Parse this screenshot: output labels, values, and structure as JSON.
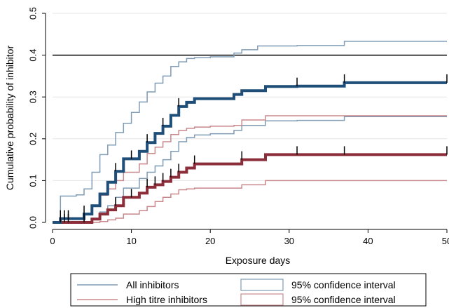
{
  "chart_data": {
    "type": "line",
    "xlabel": "Exposure days",
    "ylabel": "Cumulative probability of inhibitor",
    "xlim": [
      0,
      50
    ],
    "ylim": [
      0,
      0.5
    ],
    "x_ticks": [
      "0",
      "10",
      "20",
      "30",
      "40",
      "50"
    ],
    "x_tick_values": [
      0,
      10,
      20,
      30,
      40,
      50
    ],
    "y_ticks": [
      "0.0",
      "0.1",
      "0.2",
      "0.3",
      "0.4",
      "0.5"
    ],
    "y_tick_values": [
      0,
      0.1,
      0.2,
      0.3,
      0.4,
      0.5
    ],
    "reference_line": 0.4,
    "grid": "horizontal",
    "legend_position": "bottom",
    "legend": [
      {
        "label": "All inhibitors",
        "kind": "line",
        "color": "#7f9cb4"
      },
      {
        "label": "95% confidence interval",
        "kind": "box",
        "color": "#7f9cb4"
      },
      {
        "label": "High titre inhibitors",
        "kind": "line",
        "color": "#c8888c"
      },
      {
        "label": "95% confidence interval",
        "kind": "box",
        "color": "#c8888c"
      }
    ],
    "series": [
      {
        "key": "all",
        "color": "#1f4e79",
        "width": 4,
        "x": [
          0,
          1,
          4,
          5,
          6,
          7,
          8,
          9,
          11,
          12,
          13,
          14,
          15,
          16,
          17,
          18,
          20,
          23,
          24,
          27,
          31,
          37,
          50
        ],
        "y": [
          0,
          0.009,
          0.02,
          0.04,
          0.068,
          0.096,
          0.122,
          0.152,
          0.17,
          0.191,
          0.213,
          0.23,
          0.256,
          0.277,
          0.287,
          0.296,
          0.296,
          0.306,
          0.315,
          0.325,
          0.326,
          0.334,
          0.334
        ]
      },
      {
        "key": "all_upper",
        "color": "#7f9cb4",
        "width": 1.5,
        "x": [
          0,
          1,
          3,
          4,
          5,
          6,
          7,
          8,
          9,
          10,
          11,
          12,
          13,
          14,
          15,
          16,
          17,
          18,
          20,
          23,
          24,
          26,
          31,
          37,
          50
        ],
        "y": [
          0,
          0.063,
          0.066,
          0.08,
          0.12,
          0.162,
          0.185,
          0.215,
          0.237,
          0.263,
          0.288,
          0.312,
          0.333,
          0.35,
          0.373,
          0.384,
          0.392,
          0.394,
          0.396,
          0.405,
          0.413,
          0.422,
          0.423,
          0.433,
          0.433
        ]
      },
      {
        "key": "all_lower",
        "color": "#7f9cb4",
        "width": 1.5,
        "x": [
          0,
          4,
          5,
          6,
          7,
          8,
          9,
          11,
          12,
          13,
          14,
          15,
          16,
          17,
          18,
          20,
          23,
          24,
          27,
          31,
          37,
          50
        ],
        "y": [
          0,
          0.002,
          0.01,
          0.025,
          0.04,
          0.06,
          0.082,
          0.105,
          0.12,
          0.135,
          0.15,
          0.17,
          0.193,
          0.203,
          0.209,
          0.212,
          0.22,
          0.232,
          0.243,
          0.244,
          0.253,
          0.253
        ]
      },
      {
        "key": "high",
        "color": "#8b2e3a",
        "width": 4,
        "x": [
          0,
          5,
          6,
          7,
          8,
          9,
          11,
          12,
          13,
          14,
          15,
          16,
          17,
          18,
          20,
          23,
          24,
          27,
          31,
          37,
          50
        ],
        "y": [
          0,
          0.008,
          0.02,
          0.03,
          0.04,
          0.06,
          0.07,
          0.084,
          0.09,
          0.098,
          0.108,
          0.12,
          0.13,
          0.14,
          0.14,
          0.14,
          0.15,
          0.162,
          0.162,
          0.162,
          0.162
        ]
      },
      {
        "key": "high_upper",
        "color": "#c8888c",
        "width": 1.5,
        "x": [
          0,
          4,
          5,
          6,
          7,
          8,
          9,
          11,
          12,
          13,
          14,
          15,
          16,
          17,
          18,
          20,
          23,
          24,
          27,
          31,
          37,
          50
        ],
        "y": [
          0,
          0.02,
          0.04,
          0.065,
          0.08,
          0.1,
          0.12,
          0.14,
          0.165,
          0.18,
          0.193,
          0.21,
          0.22,
          0.225,
          0.228,
          0.23,
          0.232,
          0.245,
          0.255,
          0.255,
          0.255,
          0.255
        ]
      },
      {
        "key": "high_lower",
        "color": "#c8888c",
        "width": 1.5,
        "x": [
          0,
          6,
          7,
          8,
          9,
          11,
          12,
          13,
          14,
          15,
          16,
          17,
          18,
          20,
          24,
          27,
          31,
          37,
          50
        ],
        "y": [
          0,
          0.002,
          0.006,
          0.01,
          0.02,
          0.028,
          0.038,
          0.05,
          0.06,
          0.068,
          0.078,
          0.08,
          0.082,
          0.082,
          0.09,
          0.1,
          0.1,
          0.1,
          0.1
        ]
      }
    ],
    "censor_marks": {
      "all": [
        1,
        1.5,
        2,
        4,
        8,
        10,
        12,
        14,
        16,
        31,
        37,
        50
      ],
      "high": [
        1,
        1.5,
        2,
        4,
        8,
        10,
        12,
        13,
        14,
        15,
        16,
        18,
        24,
        31,
        37,
        50
      ]
    }
  }
}
